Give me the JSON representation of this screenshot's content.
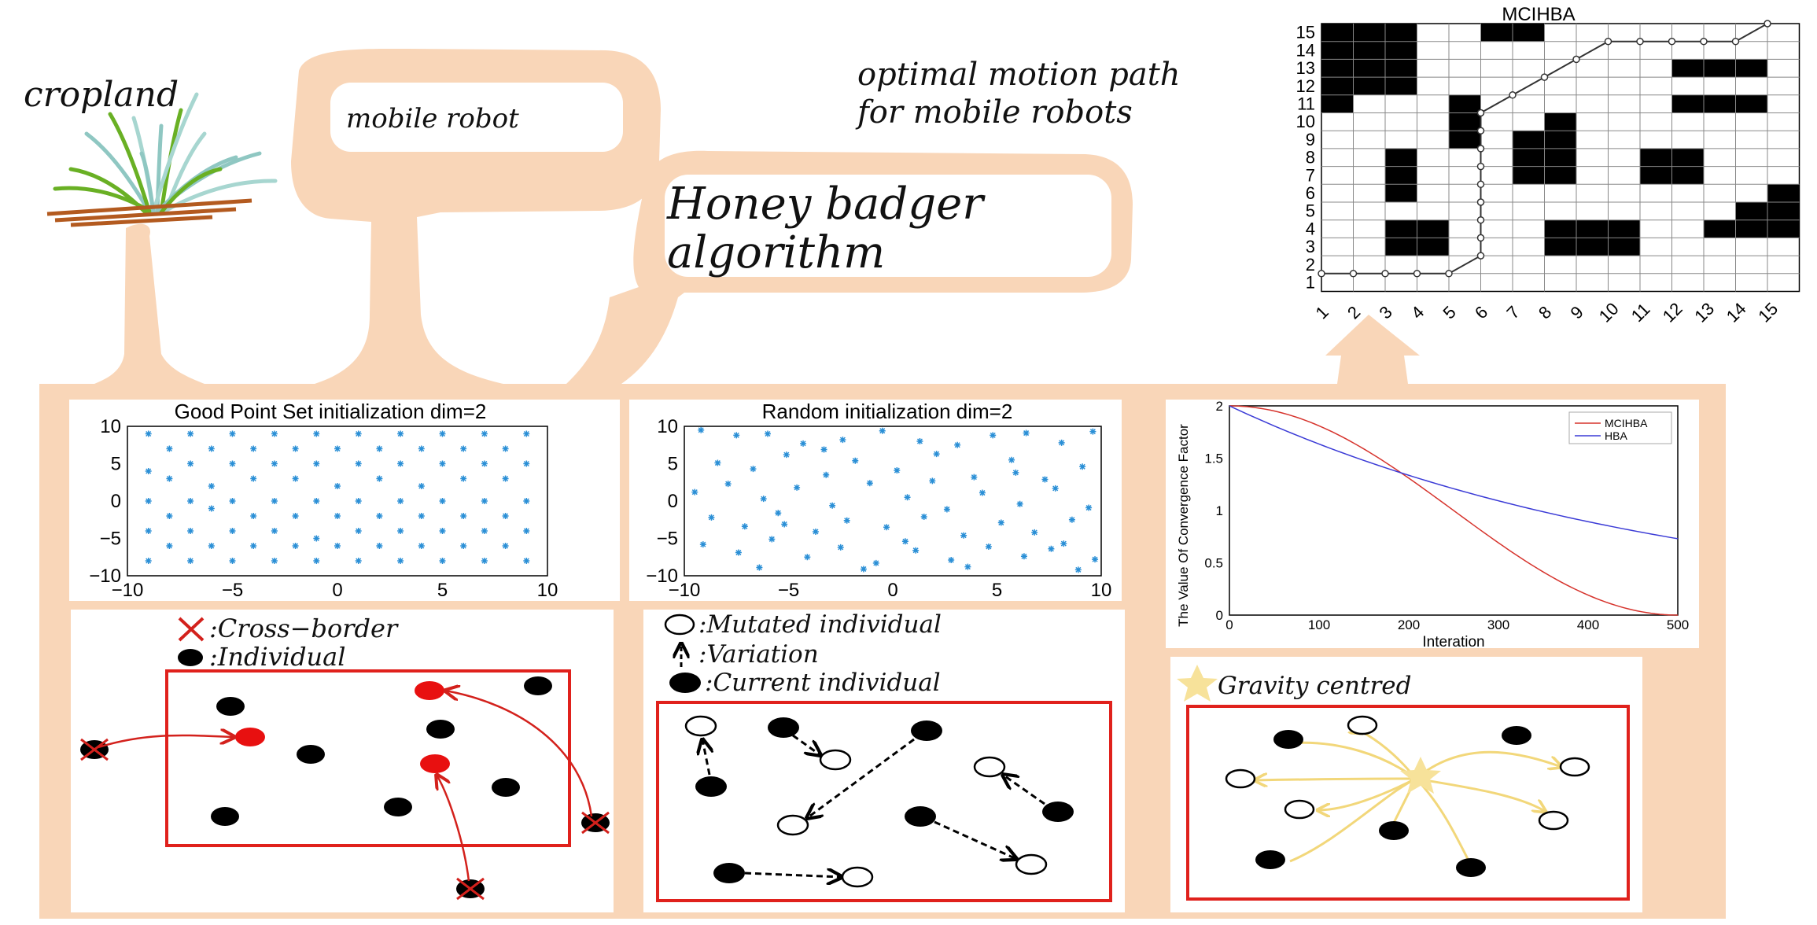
{
  "labels": {
    "cropland": "cropland",
    "mobile_robot": "mobile robot",
    "optimal_path_line1": "optimal motion path",
    "optimal_path_line2": "for mobile robots",
    "hba_line1": "Honey badger",
    "hba_line2": "algorithm",
    "cross_border": ":Cross−border",
    "individual": ":Individual",
    "mutated_individual": ":Mutated individual",
    "variation": ":Variation",
    "current_individual": ":Current individual",
    "gravity_centred": "Gravity centred"
  },
  "colors": {
    "background": "#ffffff",
    "arrow_fill": "#f9d6b8",
    "panel_border": "#e0211c",
    "scatter_point": "#2a8fd6",
    "mcihba_line": "#d6332c",
    "hba_line": "#3b3bd6",
    "gravity_arrow": "#f7e29a",
    "grid_obstacle": "#000000"
  },
  "chart_data": [
    {
      "type": "heatmap",
      "title": "MCIHBA",
      "x_ticks": [
        "1",
        "2",
        "3",
        "4",
        "5",
        "6",
        "7",
        "8",
        "9",
        "10",
        "11",
        "12",
        "13",
        "14",
        "15"
      ],
      "y_ticks": [
        "1",
        "2",
        "3",
        "4",
        "5",
        "6",
        "7",
        "8",
        "9",
        "10",
        "11",
        "12",
        "13",
        "14",
        "15"
      ],
      "obstacles": [
        [
          1,
          15
        ],
        [
          2,
          15
        ],
        [
          3,
          15
        ],
        [
          1,
          14
        ],
        [
          2,
          14
        ],
        [
          3,
          14
        ],
        [
          1,
          13
        ],
        [
          2,
          13
        ],
        [
          3,
          13
        ],
        [
          1,
          12
        ],
        [
          2,
          12
        ],
        [
          3,
          12
        ],
        [
          1,
          11
        ],
        [
          6,
          15
        ],
        [
          7,
          15
        ],
        [
          12,
          13
        ],
        [
          13,
          13
        ],
        [
          14,
          13
        ],
        [
          12,
          11
        ],
        [
          13,
          11
        ],
        [
          14,
          11
        ],
        [
          5,
          11
        ],
        [
          5,
          10
        ],
        [
          5,
          9
        ],
        [
          3,
          8
        ],
        [
          3,
          7
        ],
        [
          3,
          6
        ],
        [
          7,
          9
        ],
        [
          8,
          9
        ],
        [
          7,
          8
        ],
        [
          8,
          8
        ],
        [
          8,
          10
        ],
        [
          7,
          7
        ],
        [
          8,
          7
        ],
        [
          11,
          8
        ],
        [
          12,
          8
        ],
        [
          11,
          7
        ],
        [
          12,
          7
        ],
        [
          15,
          6
        ],
        [
          14,
          5
        ],
        [
          15,
          5
        ],
        [
          13,
          4
        ],
        [
          14,
          4
        ],
        [
          15,
          4
        ],
        [
          3,
          4
        ],
        [
          4,
          4
        ],
        [
          3,
          3
        ],
        [
          4,
          3
        ],
        [
          8,
          4
        ],
        [
          9,
          4
        ],
        [
          10,
          4
        ],
        [
          8,
          3
        ],
        [
          9,
          3
        ],
        [
          10,
          3
        ]
      ],
      "path": [
        [
          1,
          1.5
        ],
        [
          2,
          1.5
        ],
        [
          3,
          1.5
        ],
        [
          4,
          1.5
        ],
        [
          5,
          1.5
        ],
        [
          6,
          2.5
        ],
        [
          6,
          3.5
        ],
        [
          6,
          4.5
        ],
        [
          6,
          5.5
        ],
        [
          6,
          6.5
        ],
        [
          6,
          7.5
        ],
        [
          6,
          8.5
        ],
        [
          6,
          9.5
        ],
        [
          6,
          10.5
        ],
        [
          7,
          11.5
        ],
        [
          8,
          12.5
        ],
        [
          9,
          13.5
        ],
        [
          10,
          14.5
        ],
        [
          11,
          14.5
        ],
        [
          12,
          14.5
        ],
        [
          13,
          14.5
        ],
        [
          14,
          14.5
        ],
        [
          15,
          15.5
        ]
      ]
    },
    {
      "type": "scatter",
      "title": "Good Point Set initialization  dim=2",
      "xlim": [
        -10,
        10
      ],
      "ylim": [
        -10,
        10
      ],
      "x_ticks": [
        "−10",
        "−5",
        "0",
        "5",
        "10"
      ],
      "y_ticks": [
        "10",
        "5",
        "0",
        "−5",
        "−10"
      ],
      "points": [
        [
          -9,
          9
        ],
        [
          -7,
          9
        ],
        [
          -5,
          9
        ],
        [
          -3,
          9
        ],
        [
          -1,
          9
        ],
        [
          1,
          9
        ],
        [
          3,
          9
        ],
        [
          5,
          9
        ],
        [
          7,
          9
        ],
        [
          9,
          9
        ],
        [
          -8,
          7
        ],
        [
          -6,
          7
        ],
        [
          -4,
          7
        ],
        [
          -2,
          7
        ],
        [
          0,
          7
        ],
        [
          2,
          7
        ],
        [
          4,
          7
        ],
        [
          6,
          7
        ],
        [
          8,
          7
        ],
        [
          -9,
          4
        ],
        [
          -7,
          5
        ],
        [
          -5,
          5
        ],
        [
          -3,
          5
        ],
        [
          -1,
          5
        ],
        [
          1,
          5
        ],
        [
          3,
          5
        ],
        [
          5,
          5
        ],
        [
          7,
          5
        ],
        [
          9,
          5
        ],
        [
          -8,
          3
        ],
        [
          -6,
          2
        ],
        [
          -4,
          3
        ],
        [
          -2,
          3
        ],
        [
          0,
          2
        ],
        [
          2,
          3
        ],
        [
          4,
          2
        ],
        [
          6,
          3
        ],
        [
          8,
          3
        ],
        [
          -9,
          0
        ],
        [
          -7,
          0
        ],
        [
          -5,
          0
        ],
        [
          -3,
          0
        ],
        [
          -1,
          0
        ],
        [
          1,
          0
        ],
        [
          3,
          0
        ],
        [
          5,
          0
        ],
        [
          7,
          0
        ],
        [
          9,
          0
        ],
        [
          -8,
          -2
        ],
        [
          -6,
          -1
        ],
        [
          -4,
          -2
        ],
        [
          -2,
          -2
        ],
        [
          0,
          -2
        ],
        [
          2,
          -2
        ],
        [
          4,
          -2
        ],
        [
          6,
          -2
        ],
        [
          8,
          -2
        ],
        [
          -9,
          -4
        ],
        [
          -7,
          -4
        ],
        [
          -5,
          -4
        ],
        [
          -3,
          -4
        ],
        [
          -1,
          -5
        ],
        [
          1,
          -4
        ],
        [
          3,
          -4
        ],
        [
          5,
          -4
        ],
        [
          7,
          -4
        ],
        [
          9,
          -4
        ],
        [
          -8,
          -6
        ],
        [
          -6,
          -6
        ],
        [
          -4,
          -6
        ],
        [
          -2,
          -6
        ],
        [
          0,
          -6
        ],
        [
          2,
          -6
        ],
        [
          4,
          -6
        ],
        [
          6,
          -6
        ],
        [
          8,
          -6
        ],
        [
          -9,
          -8
        ],
        [
          -7,
          -8
        ],
        [
          -5,
          -8
        ],
        [
          -3,
          -8
        ],
        [
          -1,
          -8
        ],
        [
          1,
          -8
        ],
        [
          3,
          -8
        ],
        [
          5,
          -8
        ],
        [
          7,
          -8
        ],
        [
          9,
          -8
        ]
      ]
    },
    {
      "type": "scatter",
      "title": "Random initialization  dim=2",
      "xlim": [
        -10,
        10
      ],
      "ylim": [
        -10,
        10
      ],
      "x_ticks": [
        "−10",
        "−5",
        "0",
        "5",
        "10"
      ],
      "y_ticks": [
        "10",
        "5",
        "0",
        "−5",
        "−10"
      ],
      "points": [
        [
          -9.2,
          9.5
        ],
        [
          -7.5,
          8.8
        ],
        [
          -6,
          9
        ],
        [
          -4.3,
          7.7
        ],
        [
          -2.4,
          8.2
        ],
        [
          -0.5,
          9.4
        ],
        [
          1.3,
          8
        ],
        [
          3.1,
          7.5
        ],
        [
          4.8,
          8.8
        ],
        [
          6.4,
          9.1
        ],
        [
          8.1,
          7.8
        ],
        [
          9.6,
          9.3
        ],
        [
          -8.4,
          5.1
        ],
        [
          -6.7,
          4.3
        ],
        [
          -5.1,
          6.2
        ],
        [
          -3.2,
          3.5
        ],
        [
          -1.8,
          5.4
        ],
        [
          0.2,
          4.1
        ],
        [
          2.1,
          6.3
        ],
        [
          3.9,
          3.2
        ],
        [
          5.7,
          5.5
        ],
        [
          7.3,
          2.9
        ],
        [
          9.1,
          4.6
        ],
        [
          -9.5,
          1.2
        ],
        [
          -7.9,
          2.3
        ],
        [
          -6.2,
          0.3
        ],
        [
          -4.6,
          1.8
        ],
        [
          -2.9,
          -0.6
        ],
        [
          -1.1,
          2.4
        ],
        [
          0.7,
          0.5
        ],
        [
          2.6,
          -1.1
        ],
        [
          4.3,
          1.1
        ],
        [
          6.1,
          -0.4
        ],
        [
          7.8,
          1.7
        ],
        [
          9.4,
          -0.9
        ],
        [
          -8.7,
          -2.2
        ],
        [
          -7.1,
          -3.4
        ],
        [
          -5.5,
          -1.6
        ],
        [
          -3.7,
          -4.1
        ],
        [
          -2.2,
          -2.6
        ],
        [
          -0.3,
          -3.5
        ],
        [
          1.5,
          -2.1
        ],
        [
          3.4,
          -4.6
        ],
        [
          5.2,
          -2.9
        ],
        [
          6.8,
          -4.2
        ],
        [
          8.6,
          -2.5
        ],
        [
          -9.1,
          -5.8
        ],
        [
          -7.4,
          -6.9
        ],
        [
          -5.8,
          -5.1
        ],
        [
          -4.1,
          -7.5
        ],
        [
          -2.5,
          -6.2
        ],
        [
          -0.8,
          -8.3
        ],
        [
          1.1,
          -6.6
        ],
        [
          2.8,
          -7.9
        ],
        [
          4.6,
          -6.1
        ],
        [
          6.3,
          -7.4
        ],
        [
          8.2,
          -5.7
        ],
        [
          9.7,
          -7.8
        ],
        [
          -6.4,
          -8.9
        ],
        [
          -1.4,
          -9.1
        ],
        [
          3.6,
          -8.8
        ],
        [
          8.9,
          -9.2
        ],
        [
          -3.3,
          6.9
        ],
        [
          1.9,
          2.7
        ],
        [
          5.9,
          3.8
        ],
        [
          -5.2,
          -3.1
        ],
        [
          0.6,
          -5.4
        ],
        [
          7.6,
          -6.4
        ]
      ]
    },
    {
      "type": "line",
      "xlabel": "Interation",
      "ylabel": "The Value Of Convergence Factor",
      "xlim": [
        0,
        500
      ],
      "ylim": [
        0,
        2
      ],
      "x_ticks": [
        "0",
        "100",
        "200",
        "300",
        "400",
        "500"
      ],
      "y_ticks": [
        "2",
        "1.5",
        "1",
        "0.5",
        "0"
      ],
      "legend_position": "top-right",
      "series": [
        {
          "name": "MCIHBA",
          "shape": "cosine",
          "start": 2,
          "end": 0
        },
        {
          "name": "HBA",
          "shape": "exponential",
          "start": 2,
          "end": 0.73
        }
      ]
    }
  ]
}
